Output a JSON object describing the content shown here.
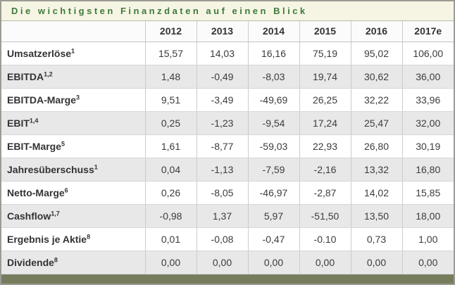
{
  "chart_data": {
    "type": "table",
    "title": "Die wichtigsten Finanzdaten auf einen Blick",
    "year_headers": [
      "2012",
      "2013",
      "2014",
      "2015",
      "2016",
      "2017e"
    ],
    "rows": [
      {
        "label": "Umsatzerlöse",
        "sup": "1",
        "values": [
          "15,57",
          "14,03",
          "16,16",
          "75,19",
          "95,02",
          "106,00"
        ]
      },
      {
        "label": "EBITDA",
        "sup": "1,2",
        "values": [
          "1,48",
          "-0,49",
          "-8,03",
          "19,74",
          "30,62",
          "36,00"
        ]
      },
      {
        "label": "EBITDA-Marge",
        "sup": "3",
        "values": [
          "9,51",
          "-3,49",
          "-49,69",
          "26,25",
          "32,22",
          "33,96"
        ]
      },
      {
        "label": "EBIT",
        "sup": "1,4",
        "values": [
          "0,25",
          "-1,23",
          "-9,54",
          "17,24",
          "25,47",
          "32,00"
        ]
      },
      {
        "label": "EBIT-Marge",
        "sup": "5",
        "values": [
          "1,61",
          "-8,77",
          "-59,03",
          "22,93",
          "26,80",
          "30,19"
        ]
      },
      {
        "label": "Jahresüberschuss",
        "sup": "1",
        "values": [
          "0,04",
          "-1,13",
          "-7,59",
          "-2,16",
          "13,32",
          "16,80"
        ]
      },
      {
        "label": "Netto-Marge",
        "sup": "6",
        "values": [
          "0,26",
          "-8,05",
          "-46,97",
          "-2,87",
          "14,02",
          "15,85"
        ]
      },
      {
        "label": "Cashflow",
        "sup": "1,7",
        "values": [
          "-0,98",
          "1,37",
          "5,97",
          "-51,50",
          "13,50",
          "18,00"
        ]
      },
      {
        "label": "Ergebnis je Aktie",
        "sup": "8",
        "values": [
          "0,01",
          "-0,08",
          "-0,47",
          "-0.10",
          "0,73",
          "1,00"
        ]
      },
      {
        "label": "Dividende",
        "sup": "8",
        "values": [
          "0,00",
          "0,00",
          "0,00",
          "0,00",
          "0,00",
          "0,00"
        ]
      }
    ]
  },
  "colors": {
    "title_text": "#3d7a3d",
    "title_background": "#f6f5e3",
    "outer_border": "#9b9b94",
    "alt_row_background": "#e8e8e8",
    "bottom_bar": "#767d5e"
  }
}
